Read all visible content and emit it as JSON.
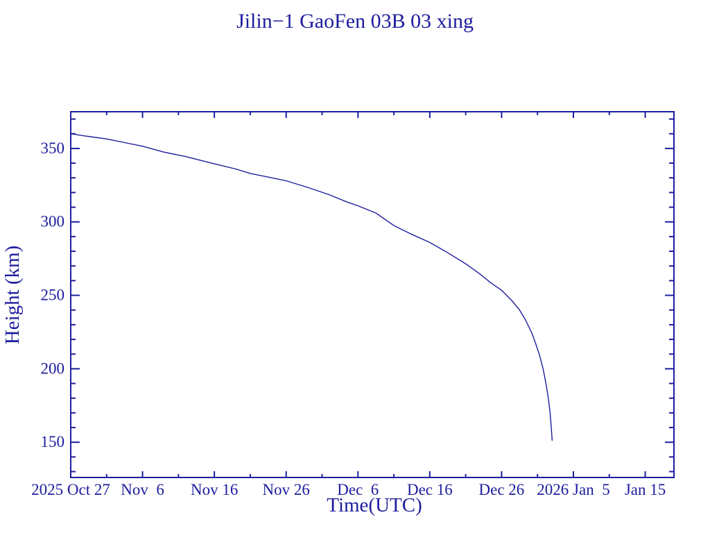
{
  "window": {
    "description": "Satellite orbital decay plot, navy line drawing on white background"
  },
  "colors": {
    "ink": "#1d1d9e",
    "background": "#ffffff"
  },
  "chart_data": {
    "type": "line",
    "title": "Jilin−1 GaoFen 03B 03 xing",
    "xlabel": "Time(UTC)",
    "ylabel": "Height (km)",
    "legend": "none",
    "grid": "off",
    "frame": "box with inward ticks mirrored on all four sides",
    "x_axis": {
      "unit": "days since 2025 Oct 27 (UTC)",
      "lim_days": [
        0,
        84
      ],
      "major_ticks": [
        {
          "day": 0,
          "label": "2025 Oct 27"
        },
        {
          "day": 10,
          "label": "Nov  6"
        },
        {
          "day": 20,
          "label": "Nov 16"
        },
        {
          "day": 30,
          "label": "Nov 26"
        },
        {
          "day": 40,
          "label": "Dec  6"
        },
        {
          "day": 50,
          "label": "Dec 16"
        },
        {
          "day": 60,
          "label": "Dec 26"
        },
        {
          "day": 70,
          "label": "2026 Jan  5"
        },
        {
          "day": 80,
          "label": "Jan 15"
        }
      ],
      "minor_tick_days": [
        5,
        15,
        25,
        35,
        45,
        55,
        65,
        75
      ]
    },
    "y_axis": {
      "unit": "km",
      "lim": [
        126,
        375
      ],
      "major_ticks": [
        150,
        200,
        250,
        300,
        350
      ],
      "minor_ticks": [
        130,
        140,
        160,
        170,
        180,
        190,
        210,
        220,
        230,
        240,
        260,
        270,
        280,
        290,
        310,
        320,
        330,
        340,
        360,
        370
      ]
    },
    "series": [
      {
        "name": "orbital height",
        "points_day_km": [
          [
            0,
            360.0
          ],
          [
            2,
            358.5
          ],
          [
            5,
            356.5
          ],
          [
            8,
            353.5
          ],
          [
            10,
            351.5
          ],
          [
            13,
            347.5
          ],
          [
            16,
            344.5
          ],
          [
            20,
            339.5
          ],
          [
            23,
            336.0
          ],
          [
            25,
            333.0
          ],
          [
            28,
            330.0
          ],
          [
            30,
            328.0
          ],
          [
            33,
            323.5
          ],
          [
            36,
            318.5
          ],
          [
            38.5,
            313.5
          ],
          [
            40,
            311.0
          ],
          [
            42.5,
            306.0
          ],
          [
            45,
            297.5
          ],
          [
            47.5,
            291.5
          ],
          [
            50,
            286.0
          ],
          [
            52.5,
            279.0
          ],
          [
            55,
            271.5
          ],
          [
            57,
            264.5
          ],
          [
            58.5,
            258.5
          ],
          [
            60,
            253.5
          ],
          [
            61.5,
            246.0
          ],
          [
            62.5,
            240.0
          ],
          [
            63.3,
            233.5
          ],
          [
            64.2,
            224.5
          ],
          [
            64.8,
            216.5
          ],
          [
            65.3,
            209.0
          ],
          [
            65.8,
            199.5
          ],
          [
            66.2,
            189.5
          ],
          [
            66.5,
            180.0
          ],
          [
            66.75,
            170.5
          ],
          [
            66.9,
            161.0
          ],
          [
            67.05,
            151.0
          ]
        ]
      }
    ]
  }
}
